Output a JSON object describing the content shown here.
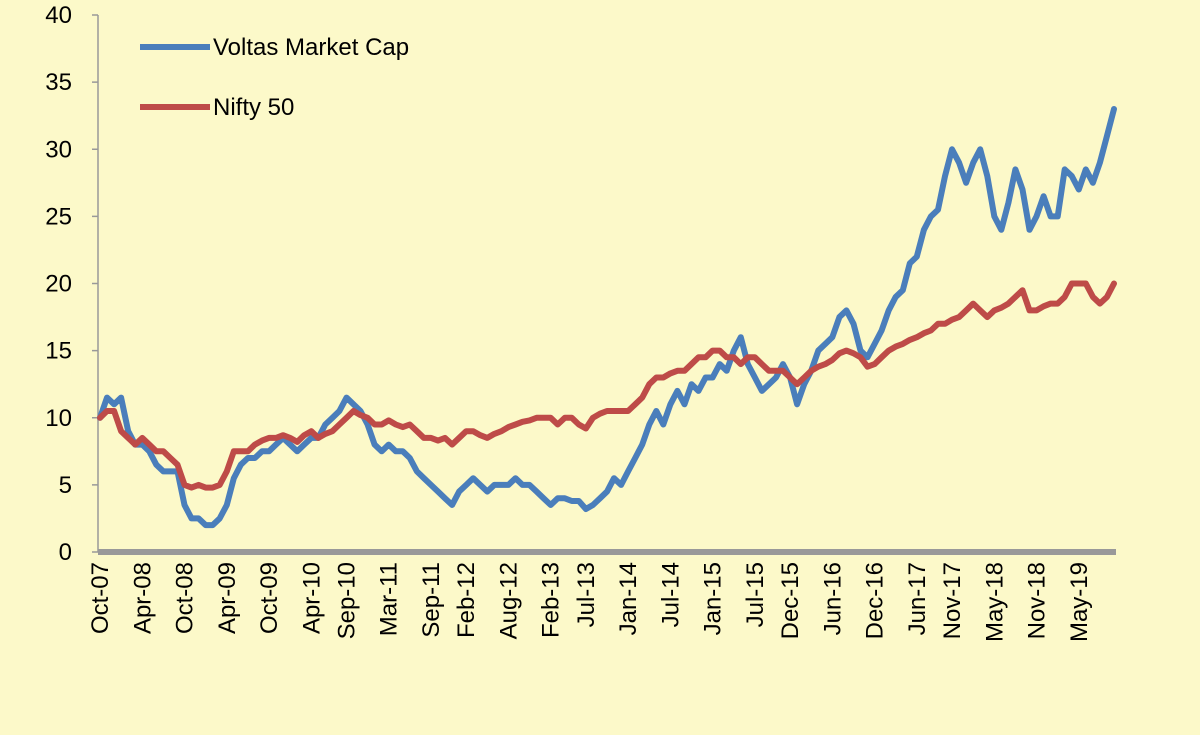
{
  "chart_data": {
    "type": "line",
    "categories": [
      "Oct-07",
      null,
      null,
      null,
      null,
      null,
      "Apr-08",
      null,
      null,
      null,
      null,
      null,
      "Oct-08",
      null,
      null,
      null,
      null,
      null,
      "Apr-09",
      null,
      null,
      null,
      null,
      null,
      "Oct-09",
      null,
      null,
      null,
      null,
      null,
      "Apr-10",
      null,
      null,
      null,
      null,
      "Sep-10",
      null,
      null,
      null,
      null,
      null,
      "Mar-11",
      null,
      null,
      null,
      null,
      null,
      "Sep-11",
      null,
      null,
      null,
      null,
      "Feb-12",
      null,
      null,
      null,
      null,
      null,
      "Aug-12",
      null,
      null,
      null,
      null,
      null,
      "Feb-13",
      null,
      null,
      null,
      null,
      "Jul-13",
      null,
      null,
      null,
      null,
      null,
      "Jan-14",
      null,
      null,
      null,
      null,
      null,
      "Jul-14",
      null,
      null,
      null,
      null,
      null,
      "Jan-15",
      null,
      null,
      null,
      null,
      null,
      "Jul-15",
      null,
      null,
      null,
      null,
      "Dec-15",
      null,
      null,
      null,
      null,
      null,
      "Jun-16",
      null,
      null,
      null,
      null,
      null,
      "Dec-16",
      null,
      null,
      null,
      null,
      null,
      "Jun-17",
      null,
      null,
      null,
      null,
      "Nov-17",
      null,
      null,
      null,
      null,
      null,
      "May-18",
      null,
      null,
      null,
      null,
      null,
      "Nov-18",
      null,
      null,
      null,
      null,
      null,
      "May-19",
      null,
      null,
      null,
      null,
      null
    ],
    "series": [
      {
        "name": "Voltas Market Cap",
        "color": "#4a7ebb",
        "values": [
          10,
          11.5,
          11,
          11.5,
          9,
          8,
          8,
          7.5,
          6.5,
          6,
          6,
          6,
          3.5,
          2.5,
          2.5,
          2,
          2,
          2.5,
          3.5,
          5.5,
          6.5,
          7,
          7,
          7.5,
          7.5,
          8,
          8.5,
          8,
          7.5,
          8,
          8.5,
          8.5,
          9.5,
          10,
          10.5,
          11.5,
          11,
          10.5,
          9.5,
          8,
          7.5,
          8,
          7.5,
          7.5,
          7,
          6,
          5.5,
          5,
          4.5,
          4,
          3.5,
          4.5,
          5,
          5.5,
          5,
          4.5,
          5,
          5,
          5,
          5.5,
          5,
          5,
          4.5,
          4,
          3.5,
          4,
          4,
          3.8,
          3.8,
          3.2,
          3.5,
          4,
          4.5,
          5.5,
          5,
          6,
          7,
          8,
          9.5,
          10.5,
          9.5,
          11,
          12,
          11,
          12.5,
          12,
          13,
          13,
          14,
          13.5,
          15,
          16,
          14,
          13,
          12,
          12.5,
          13,
          14,
          13,
          11,
          12.5,
          13.5,
          15,
          15.5,
          16,
          17.5,
          18,
          17,
          15,
          14.5,
          15.5,
          16.5,
          18,
          19,
          19.5,
          21.5,
          22,
          24,
          25,
          25.5,
          28,
          30,
          29,
          27.5,
          29,
          30,
          28,
          25,
          24,
          26,
          28.5,
          27,
          24,
          25,
          26.5,
          25,
          25,
          28.5,
          28,
          27,
          28.5,
          27.5,
          29,
          31,
          33
        ]
      },
      {
        "name": "Nifty 50",
        "color": "#be4b48",
        "values": [
          10,
          10.5,
          10.5,
          9,
          8.5,
          8,
          8.5,
          8,
          7.5,
          7.5,
          7,
          6.5,
          5,
          4.8,
          5,
          4.8,
          4.8,
          5,
          6,
          7.5,
          7.5,
          7.5,
          8,
          8.3,
          8.5,
          8.5,
          8.7,
          8.5,
          8.2,
          8.7,
          9,
          8.5,
          8.8,
          9,
          9.5,
          10,
          10.5,
          10.2,
          10,
          9.5,
          9.5,
          9.8,
          9.5,
          9.3,
          9.5,
          9,
          8.5,
          8.5,
          8.3,
          8.5,
          8,
          8.5,
          9,
          9,
          8.7,
          8.5,
          8.8,
          9,
          9.3,
          9.5,
          9.7,
          9.8,
          10,
          10,
          10,
          9.5,
          10,
          10,
          9.5,
          9.2,
          10,
          10.3,
          10.5,
          10.5,
          10.5,
          10.5,
          11,
          11.5,
          12.5,
          13,
          13,
          13.3,
          13.5,
          13.5,
          14,
          14.5,
          14.5,
          15,
          15,
          14.5,
          14.5,
          14,
          14.5,
          14.5,
          14,
          13.5,
          13.5,
          13.5,
          13,
          12.5,
          13,
          13.5,
          13.8,
          14,
          14.3,
          14.8,
          15,
          14.8,
          14.5,
          13.8,
          14,
          14.5,
          15,
          15.3,
          15.5,
          15.8,
          16,
          16.3,
          16.5,
          17,
          17,
          17.3,
          17.5,
          18,
          18.5,
          18,
          17.5,
          18,
          18.2,
          18.5,
          19,
          19.5,
          18,
          18,
          18.3,
          18.5,
          18.5,
          19,
          20,
          20,
          20,
          19,
          18.5,
          19,
          20
        ]
      }
    ],
    "ylim": [
      0,
      40
    ],
    "yticks": [
      0,
      5,
      10,
      15,
      20,
      25,
      30,
      35,
      40
    ],
    "legend": "top-left"
  }
}
